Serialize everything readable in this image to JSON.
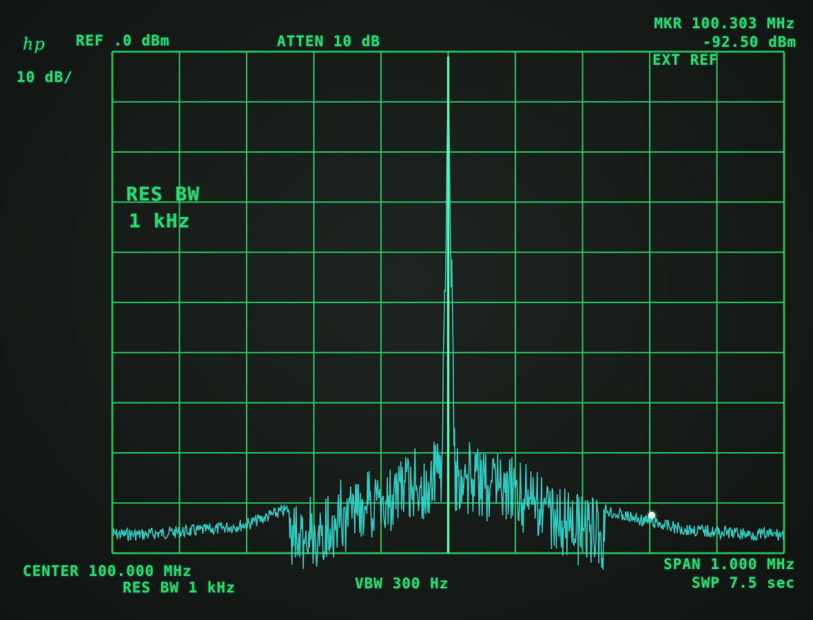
{
  "brand": "hp",
  "header": {
    "ref_level": "REF .0 dBm",
    "scale": "10 dB/",
    "attenuation": "ATTEN 10 dB",
    "marker_freq": "MKR 100.303 MHz",
    "marker_level": "-92.50 dBm",
    "ext_ref": "EXT REF"
  },
  "overlay": {
    "res_bw_line1": "RES BW",
    "res_bw_line2": "1 kHz"
  },
  "footer": {
    "center": "CENTER 100.000 MHz",
    "res_bw": "RES BW 1 kHz",
    "vbw": "VBW 300 Hz",
    "span": "SPAN 1.000 MHz",
    "sweep": "SWP 7.5 sec"
  },
  "colors": {
    "trace": "#30dcd0",
    "graticule": "#27d064",
    "text": "#27d872",
    "background": "#161b18"
  },
  "chart_data": {
    "type": "line",
    "xlabel": "",
    "ylabel": "",
    "x_unit": "MHz",
    "y_unit": "dBm",
    "xlim": [
      99.5,
      100.5
    ],
    "ylim": [
      -100,
      0
    ],
    "grid": true,
    "x_divisions": 10,
    "y_divisions": 10,
    "series": [
      {
        "x": [
          99.5,
          99.55,
          99.6,
          99.65,
          99.7,
          99.75,
          99.8,
          99.85,
          99.9,
          99.95,
          99.99,
          100.0,
          100.01,
          100.05,
          100.1,
          100.15,
          100.2,
          100.25,
          100.3,
          100.35,
          100.4,
          100.45,
          100.5
        ],
        "y": [
          -95,
          -95,
          -94.5,
          -94,
          -93,
          -90.5,
          -88.5,
          -84.5,
          -82,
          -79,
          -77,
          -1,
          -77,
          -78.5,
          -81,
          -84,
          -88,
          -91,
          -92.5,
          -94,
          -94.5,
          -95,
          -95
        ]
      }
    ],
    "marker": {
      "x": 100.303,
      "y": -92.5
    }
  }
}
